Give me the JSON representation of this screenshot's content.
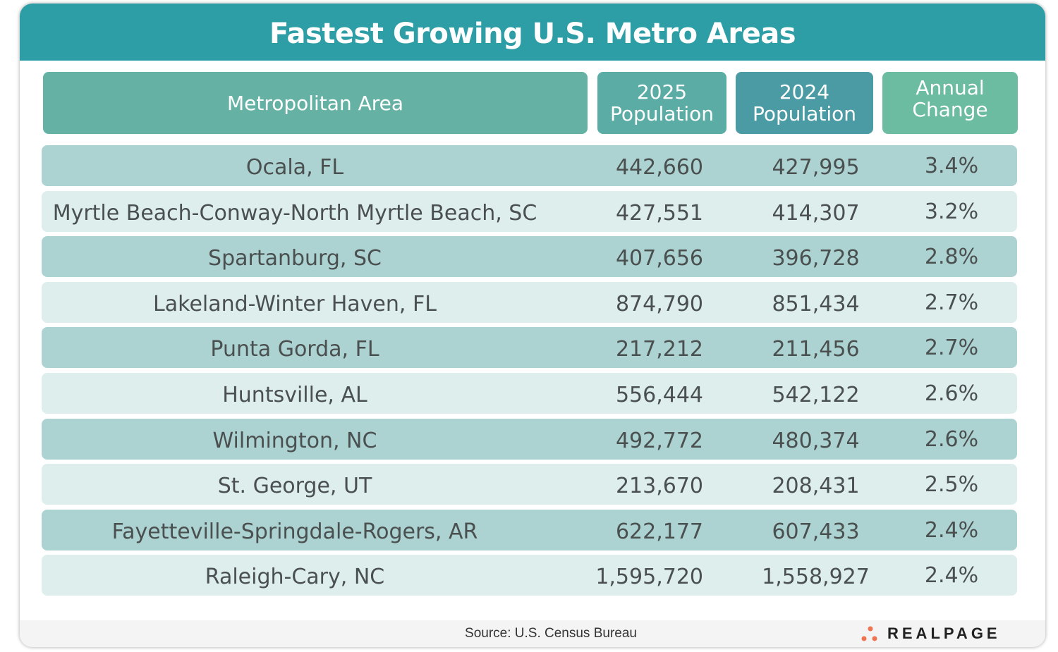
{
  "title": "Fastest Growing U.S. Metro Areas",
  "colors": {
    "title_bar": "#2d9ea5",
    "header_metro": "#65b2a4",
    "header_2025": "#5aaca5",
    "header_2024": "#4b9ba5",
    "header_change": "#6bbca0",
    "row_dark": "#acd3d2",
    "row_light": "#ddeeed",
    "logo_dots": "#ef7452"
  },
  "chart_data": {
    "type": "table",
    "title": "Fastest Growing U.S. Metro Areas",
    "columns": [
      "Metropolitan Area",
      "2025 Population",
      "2024 Population",
      "Annual Change"
    ],
    "column_lines": [
      [
        "Metropolitan Area"
      ],
      [
        "2025",
        "Population"
      ],
      [
        "2024",
        "Population"
      ],
      [
        "Annual",
        "Change"
      ]
    ],
    "rows": [
      [
        "Ocala, FL",
        "442,660",
        "427,995",
        "3.4%"
      ],
      [
        "Myrtle Beach-Conway-North Myrtle Beach, SC",
        "427,551",
        "414,307",
        "3.2%"
      ],
      [
        "Spartanburg, SC",
        "407,656",
        "396,728",
        "2.8%"
      ],
      [
        "Lakeland-Winter Haven, FL",
        "874,790",
        "851,434",
        "2.7%"
      ],
      [
        "Punta Gorda, FL",
        "217,212",
        "211,456",
        "2.7%"
      ],
      [
        "Huntsville, AL",
        "556,444",
        "542,122",
        "2.6%"
      ],
      [
        "Wilmington, NC",
        "492,772",
        "480,374",
        "2.6%"
      ],
      [
        "St. George, UT",
        "213,670",
        "208,431",
        "2.5%"
      ],
      [
        "Fayetteville-Springdale-Rogers, AR",
        "622,177",
        "607,433",
        "2.4%"
      ],
      [
        "Raleigh-Cary, NC",
        "1,595,720",
        "1,558,927",
        "2.4%"
      ]
    ]
  },
  "footer": {
    "source": "Source: U.S. Census Bureau",
    "logo": "REALPAGE"
  }
}
